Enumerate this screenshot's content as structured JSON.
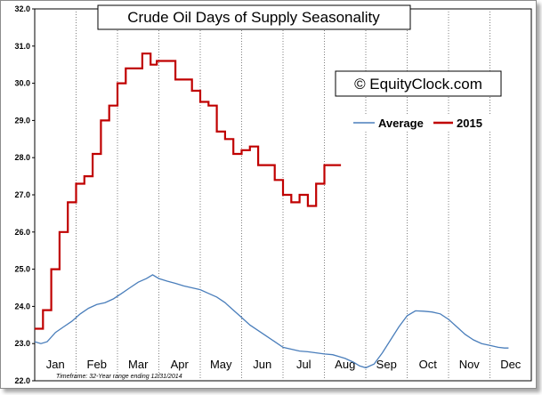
{
  "chart_data": {
    "type": "line",
    "title": "Crude Oil Days of Supply Seasonality",
    "watermark": "© EquityClock.com",
    "footnote": "Timeframe: 32-Year range ending 12/31/2014",
    "legend_position": "top-right",
    "grid": "vertical",
    "ylim": [
      22.0,
      32.0
    ],
    "y_ticks": [
      "32.0",
      "31.0",
      "30.0",
      "29.0",
      "28.0",
      "27.0",
      "26.0",
      "25.0",
      "24.0",
      "23.0",
      "22.0"
    ],
    "months": [
      "Jan",
      "Feb",
      "Mar",
      "Apr",
      "May",
      "Jun",
      "Jul",
      "Aug",
      "Sep",
      "Oct",
      "Nov",
      "Dec"
    ],
    "x_range_months": [
      0,
      12
    ],
    "series": [
      {
        "name": "Average",
        "color": "#4a7ebb",
        "style": "line",
        "points": [
          [
            0.0,
            23.05
          ],
          [
            0.15,
            23.0
          ],
          [
            0.3,
            23.05
          ],
          [
            0.5,
            23.3
          ],
          [
            0.7,
            23.45
          ],
          [
            0.9,
            23.6
          ],
          [
            1.1,
            23.8
          ],
          [
            1.3,
            23.95
          ],
          [
            1.5,
            24.05
          ],
          [
            1.7,
            24.1
          ],
          [
            1.9,
            24.2
          ],
          [
            2.1,
            24.35
          ],
          [
            2.3,
            24.5
          ],
          [
            2.5,
            24.65
          ],
          [
            2.7,
            24.75
          ],
          [
            2.85,
            24.85
          ],
          [
            3.0,
            24.75
          ],
          [
            3.2,
            24.68
          ],
          [
            3.4,
            24.62
          ],
          [
            3.6,
            24.55
          ],
          [
            3.8,
            24.5
          ],
          [
            4.0,
            24.45
          ],
          [
            4.2,
            24.35
          ],
          [
            4.4,
            24.25
          ],
          [
            4.6,
            24.1
          ],
          [
            4.8,
            23.9
          ],
          [
            5.0,
            23.7
          ],
          [
            5.2,
            23.5
          ],
          [
            5.4,
            23.35
          ],
          [
            5.6,
            23.2
          ],
          [
            5.8,
            23.05
          ],
          [
            6.0,
            22.9
          ],
          [
            6.2,
            22.85
          ],
          [
            6.4,
            22.8
          ],
          [
            6.6,
            22.78
          ],
          [
            6.8,
            22.75
          ],
          [
            7.0,
            22.72
          ],
          [
            7.2,
            22.7
          ],
          [
            7.35,
            22.65
          ],
          [
            7.5,
            22.6
          ],
          [
            7.7,
            22.5
          ],
          [
            7.85,
            22.4
          ],
          [
            8.0,
            22.35
          ],
          [
            8.2,
            22.45
          ],
          [
            8.4,
            22.75
          ],
          [
            8.6,
            23.1
          ],
          [
            8.8,
            23.45
          ],
          [
            9.0,
            23.75
          ],
          [
            9.2,
            23.88
          ],
          [
            9.4,
            23.87
          ],
          [
            9.6,
            23.85
          ],
          [
            9.8,
            23.8
          ],
          [
            10.0,
            23.65
          ],
          [
            10.2,
            23.45
          ],
          [
            10.4,
            23.25
          ],
          [
            10.6,
            23.1
          ],
          [
            10.8,
            23.0
          ],
          [
            11.0,
            22.95
          ],
          [
            11.2,
            22.9
          ],
          [
            11.35,
            22.88
          ],
          [
            11.45,
            22.88
          ]
        ]
      },
      {
        "name": "2015",
        "color": "#c00000",
        "style": "step",
        "points": [
          [
            0.0,
            23.4
          ],
          [
            0.2,
            23.4
          ],
          [
            0.2,
            23.9
          ],
          [
            0.4,
            23.9
          ],
          [
            0.4,
            25.0
          ],
          [
            0.6,
            25.0
          ],
          [
            0.6,
            26.0
          ],
          [
            0.8,
            26.0
          ],
          [
            0.8,
            26.8
          ],
          [
            1.0,
            26.8
          ],
          [
            1.0,
            27.3
          ],
          [
            1.2,
            27.3
          ],
          [
            1.2,
            27.5
          ],
          [
            1.4,
            27.5
          ],
          [
            1.4,
            28.1
          ],
          [
            1.6,
            28.1
          ],
          [
            1.6,
            29.0
          ],
          [
            1.8,
            29.0
          ],
          [
            1.8,
            29.4
          ],
          [
            2.0,
            29.4
          ],
          [
            2.0,
            30.0
          ],
          [
            2.2,
            30.0
          ],
          [
            2.2,
            30.4
          ],
          [
            2.6,
            30.4
          ],
          [
            2.6,
            30.8
          ],
          [
            2.8,
            30.8
          ],
          [
            2.8,
            30.5
          ],
          [
            2.95,
            30.5
          ],
          [
            2.95,
            30.6
          ],
          [
            3.4,
            30.6
          ],
          [
            3.4,
            30.1
          ],
          [
            3.8,
            30.1
          ],
          [
            3.8,
            29.8
          ],
          [
            4.0,
            29.8
          ],
          [
            4.0,
            29.5
          ],
          [
            4.2,
            29.5
          ],
          [
            4.2,
            29.4
          ],
          [
            4.4,
            29.4
          ],
          [
            4.4,
            28.7
          ],
          [
            4.6,
            28.7
          ],
          [
            4.6,
            28.5
          ],
          [
            4.8,
            28.5
          ],
          [
            4.8,
            28.1
          ],
          [
            5.0,
            28.1
          ],
          [
            5.0,
            28.2
          ],
          [
            5.2,
            28.2
          ],
          [
            5.2,
            28.3
          ],
          [
            5.4,
            28.3
          ],
          [
            5.4,
            27.8
          ],
          [
            5.8,
            27.8
          ],
          [
            5.8,
            27.4
          ],
          [
            6.0,
            27.4
          ],
          [
            6.0,
            27.0
          ],
          [
            6.2,
            27.0
          ],
          [
            6.2,
            26.8
          ],
          [
            6.4,
            26.8
          ],
          [
            6.4,
            27.0
          ],
          [
            6.6,
            27.0
          ],
          [
            6.6,
            26.7
          ],
          [
            6.8,
            26.7
          ],
          [
            6.8,
            27.3
          ],
          [
            7.0,
            27.3
          ],
          [
            7.0,
            27.8
          ],
          [
            7.4,
            27.8
          ]
        ]
      }
    ]
  }
}
